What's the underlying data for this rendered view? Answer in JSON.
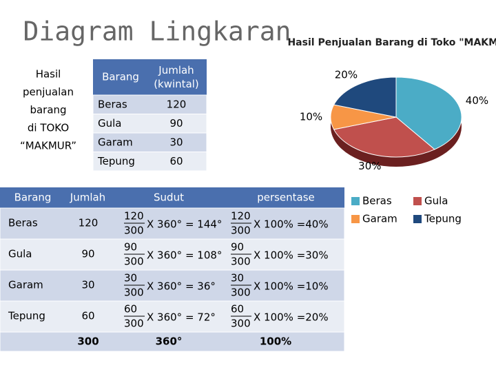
{
  "title": "Diagram Lingkaran",
  "side_text": [
    "Hasil",
    "penjualan",
    "barang",
    "di TOKO",
    "“MAKMUR”"
  ],
  "summary_table": {
    "headers": [
      "Barang",
      "Jumlah (kwintal)"
    ],
    "rows": [
      [
        "Beras",
        120
      ],
      [
        "Gula",
        90
      ],
      [
        "Garam",
        30
      ],
      [
        "Tepung",
        60
      ]
    ]
  },
  "calc_table": {
    "headers": [
      "Barang",
      "Jumlah",
      "Sudut",
      "persentase"
    ],
    "rows": [
      {
        "barang": "Beras",
        "jumlah": 120,
        "sudut": {
          "num": 120,
          "den": 300,
          "result": "X 360° = 144°"
        },
        "persen": {
          "num": 120,
          "den": 300,
          "result": "X 100% =40%"
        }
      },
      {
        "barang": "Gula",
        "jumlah": 90,
        "sudut": {
          "num": 90,
          "den": 300,
          "result": "X 360° = 108°"
        },
        "persen": {
          "num": 90,
          "den": 300,
          "result": "X 100% =30%"
        }
      },
      {
        "barang": "Garam",
        "jumlah": 30,
        "sudut": {
          "num": 30,
          "den": 300,
          "result": "X 360° = 36°"
        },
        "persen": {
          "num": 30,
          "den": 300,
          "result": "X 100% =10%"
        }
      },
      {
        "barang": "Tepung",
        "jumlah": 60,
        "sudut": {
          "num": 60,
          "den": 300,
          "result": "X 360° = 72°"
        },
        "persen": {
          "num": 60,
          "den": 300,
          "result": "X 100% =20%"
        }
      }
    ],
    "footer": [
      "300",
      "360°",
      "100%"
    ]
  },
  "chart_data": {
    "type": "pie",
    "title": "Hasil Penjualan Barang di Toko \"MAKMUR\"",
    "categories": [
      "Beras",
      "Gula",
      "Garam",
      "Tepung"
    ],
    "values": [
      40,
      30,
      10,
      20
    ],
    "value_labels": [
      "40%",
      "30%",
      "10%",
      "20%"
    ],
    "colors": [
      "#4bacc6",
      "#c0504d",
      "#f79646",
      "#1f497d"
    ]
  }
}
